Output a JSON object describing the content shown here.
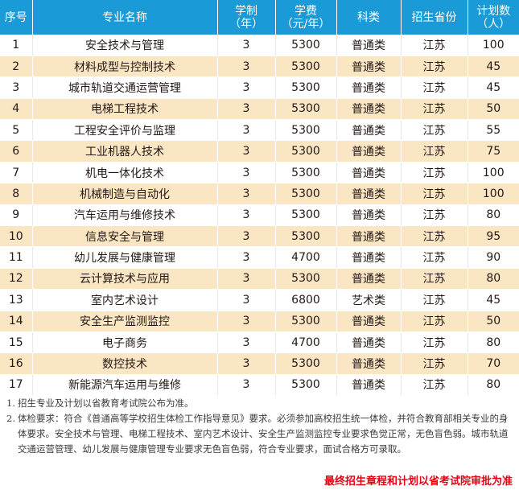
{
  "colors": {
    "header_bg": "#1a9bd7",
    "stripe": "#fbe6c3",
    "footer_text": "#e60012"
  },
  "table": {
    "headers": {
      "seq": "序号",
      "major": "专业名称",
      "years": [
        "学制",
        "（年）"
      ],
      "fee": [
        "学费",
        "（元/年）"
      ],
      "category": "科类",
      "province": "招生省份",
      "quota": [
        "计划数",
        "（人）"
      ]
    },
    "rows": [
      [
        "1",
        "安全技术与管理",
        "3",
        "5300",
        "普通类",
        "江苏",
        "100"
      ],
      [
        "2",
        "材料成型与控制技术",
        "3",
        "5300",
        "普通类",
        "江苏",
        "45"
      ],
      [
        "3",
        "城市轨道交通运营管理",
        "3",
        "5300",
        "普通类",
        "江苏",
        "45"
      ],
      [
        "4",
        "电梯工程技术",
        "3",
        "5300",
        "普通类",
        "江苏",
        "50"
      ],
      [
        "5",
        "工程安全评价与监理",
        "3",
        "5300",
        "普通类",
        "江苏",
        "55"
      ],
      [
        "6",
        "工业机器人技术",
        "3",
        "5300",
        "普通类",
        "江苏",
        "75"
      ],
      [
        "7",
        "机电一体化技术",
        "3",
        "5300",
        "普通类",
        "江苏",
        "100"
      ],
      [
        "8",
        "机械制造与自动化",
        "3",
        "5300",
        "普通类",
        "江苏",
        "100"
      ],
      [
        "9",
        "汽车运用与维修技术",
        "3",
        "5300",
        "普通类",
        "江苏",
        "80"
      ],
      [
        "10",
        "信息安全与管理",
        "3",
        "5300",
        "普通类",
        "江苏",
        "95"
      ],
      [
        "11",
        "幼儿发展与健康管理",
        "3",
        "4700",
        "普通类",
        "江苏",
        "90"
      ],
      [
        "12",
        "云计算技术与应用",
        "3",
        "5300",
        "普通类",
        "江苏",
        "80"
      ],
      [
        "13",
        "室内艺术设计",
        "3",
        "6800",
        "艺术类",
        "江苏",
        "45"
      ],
      [
        "14",
        "安全生产监测监控",
        "3",
        "5300",
        "普通类",
        "江苏",
        "50"
      ],
      [
        "15",
        "电子商务",
        "3",
        "4700",
        "普通类",
        "江苏",
        "80"
      ],
      [
        "16",
        "数控技术",
        "3",
        "5300",
        "普通类",
        "江苏",
        "70"
      ],
      [
        "17",
        "新能源汽车运用与维修",
        "3",
        "5300",
        "普通类",
        "江苏",
        "80"
      ]
    ]
  },
  "notes": [
    {
      "num": "1.",
      "text": "招生专业及计划以省教育考试院公布为准。"
    },
    {
      "num": "2.",
      "text": "体检要求：符合《普通高等学校招生体检工作指导意见》要求。必须参加高校招生统一体检，并符合教育部相关专业的身体要求。安全技术与管理、电梯工程技术、室内艺术设计、安全生产监测监控专业要求色觉正常，无色盲色弱。城市轨道交通运营管理、幼儿发展与健康管理专业要求无色盲色弱，符合专业要求，面试合格方可录取。"
    }
  ],
  "footer": "最终招生章程和计划以省考试院审批为准"
}
